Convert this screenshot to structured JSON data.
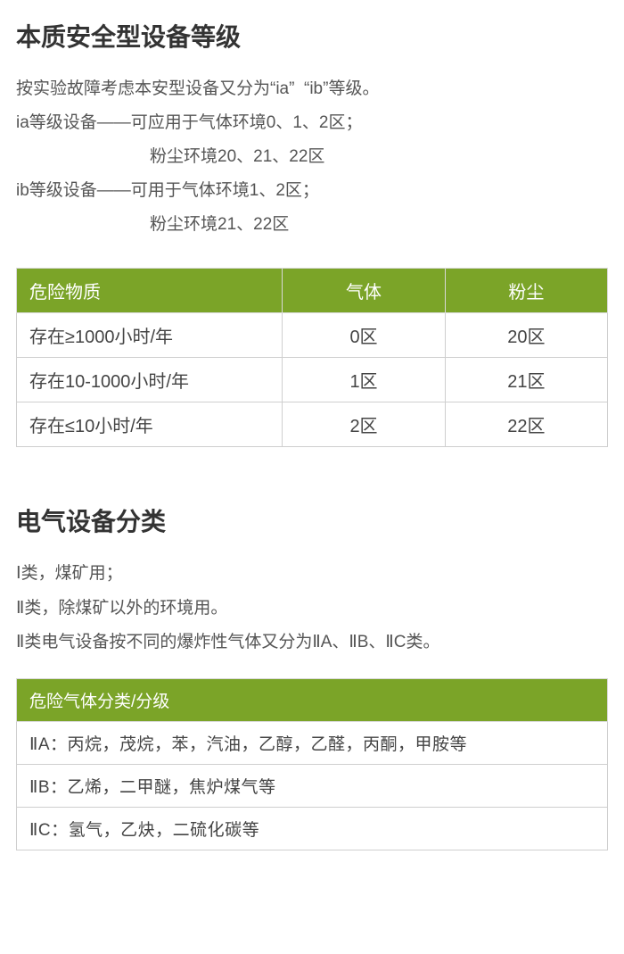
{
  "section1": {
    "title": "本质安全型设备等级",
    "lines": [
      "按实验故障考虑本安型设备又分为“ia”  “ib”等级。",
      "ia等级设备——可应用于气体环境0、1、2区；",
      "粉尘环境20、21、22区",
      "ib等级设备——可用于气体环境1、2区；",
      "粉尘环境21、22区"
    ]
  },
  "zoneTable": {
    "headerBg": "#7ba428",
    "headerColor": "#ffffff",
    "borderColor": "#cfcfcf",
    "headers": [
      "危险物质",
      "气体",
      "粉尘"
    ],
    "rows": [
      [
        "存在≥1000小时/年",
        "0区",
        "20区"
      ],
      [
        "存在10-1000小时/年",
        "1区",
        "21区"
      ],
      [
        "存在≤10小时/年",
        "2区",
        "22区"
      ]
    ]
  },
  "section2": {
    "title": "电气设备分类",
    "lines": [
      "Ⅰ类，煤矿用；",
      "Ⅱ类，除煤矿以外的环境用。",
      "Ⅱ类电气设备按不同的爆炸性气体又分为ⅡA、ⅡB、ⅡC类。"
    ]
  },
  "gasTable": {
    "header": "危险气体分类/分级",
    "rows": [
      "ⅡA：丙烷，茂烷，苯，汽油，乙醇，乙醛，丙酮，甲胺等",
      "ⅡB：乙烯，二甲醚，焦炉煤气等",
      "ⅡC：氢气，乙炔，二硫化碳等"
    ]
  }
}
